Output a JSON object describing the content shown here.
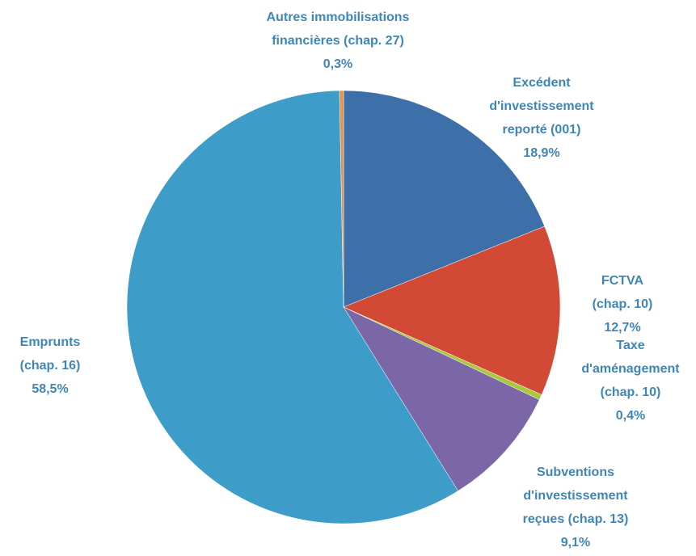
{
  "chart_data": {
    "type": "pie",
    "categories": [
      [
        "Excédent",
        "d'investissement",
        "reporté (001)"
      ],
      [
        "FCTVA",
        "(chap. 10)"
      ],
      [
        "Taxe",
        "d'aménagement",
        "(chap. 10)"
      ],
      [
        "Subventions",
        "d'investissement",
        "reçues (chap. 13)"
      ],
      [
        "Emprunts",
        "(chap. 16)"
      ],
      [
        "Autres immobilisations",
        "financières (chap. 27)"
      ]
    ],
    "values": [
      18.9,
      12.7,
      0.4,
      9.1,
      58.5,
      0.3
    ],
    "value_labels": [
      "18,9%",
      "12,7%",
      "0,4%",
      "9,1%",
      "58,5%",
      "0,3%"
    ],
    "colors": [
      "#3d6fa9",
      "#d24a36",
      "#a9c83e",
      "#7b67a7",
      "#3e9cc8",
      "#e8914a"
    ]
  }
}
